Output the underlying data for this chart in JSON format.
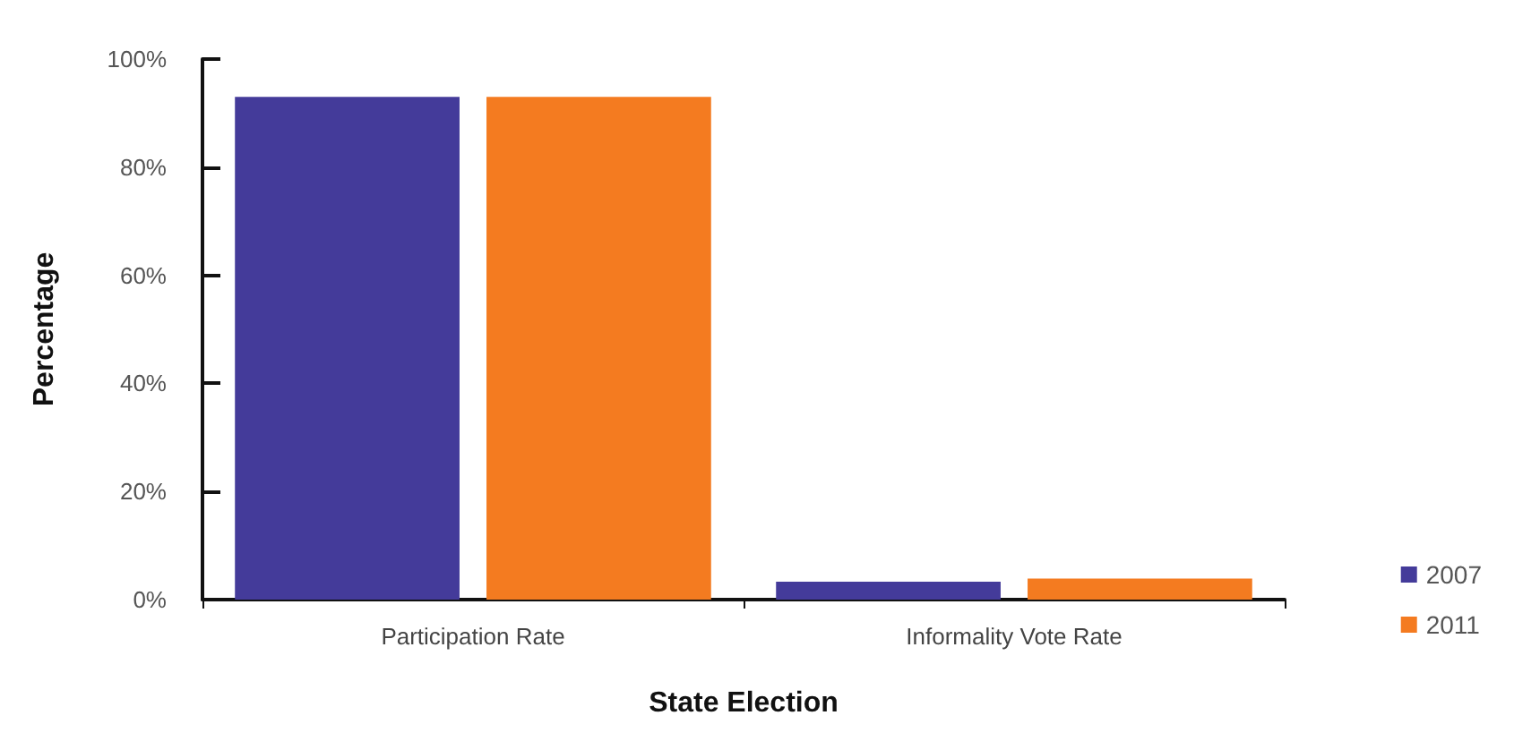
{
  "chart_data": {
    "type": "bar",
    "xlabel": "State Election",
    "ylabel": "Percentage",
    "categories": [
      "Participation Rate",
      "Informality Vote Rate"
    ],
    "series": [
      {
        "name": "2007",
        "color": "#443b9a",
        "values": [
          93,
          3.3
        ]
      },
      {
        "name": "2011",
        "color": "#f47b20",
        "values": [
          93,
          3.9
        ]
      }
    ],
    "ylim": [
      0,
      100
    ],
    "yticks": [
      {
        "value": 0,
        "label": "0%"
      },
      {
        "value": 20,
        "label": "20%"
      },
      {
        "value": 40,
        "label": "40%"
      },
      {
        "value": 60,
        "label": "60%"
      },
      {
        "value": 80,
        "label": "80%"
      },
      {
        "value": 100,
        "label": "100%"
      }
    ],
    "grid": false,
    "legend": "bottom right"
  }
}
